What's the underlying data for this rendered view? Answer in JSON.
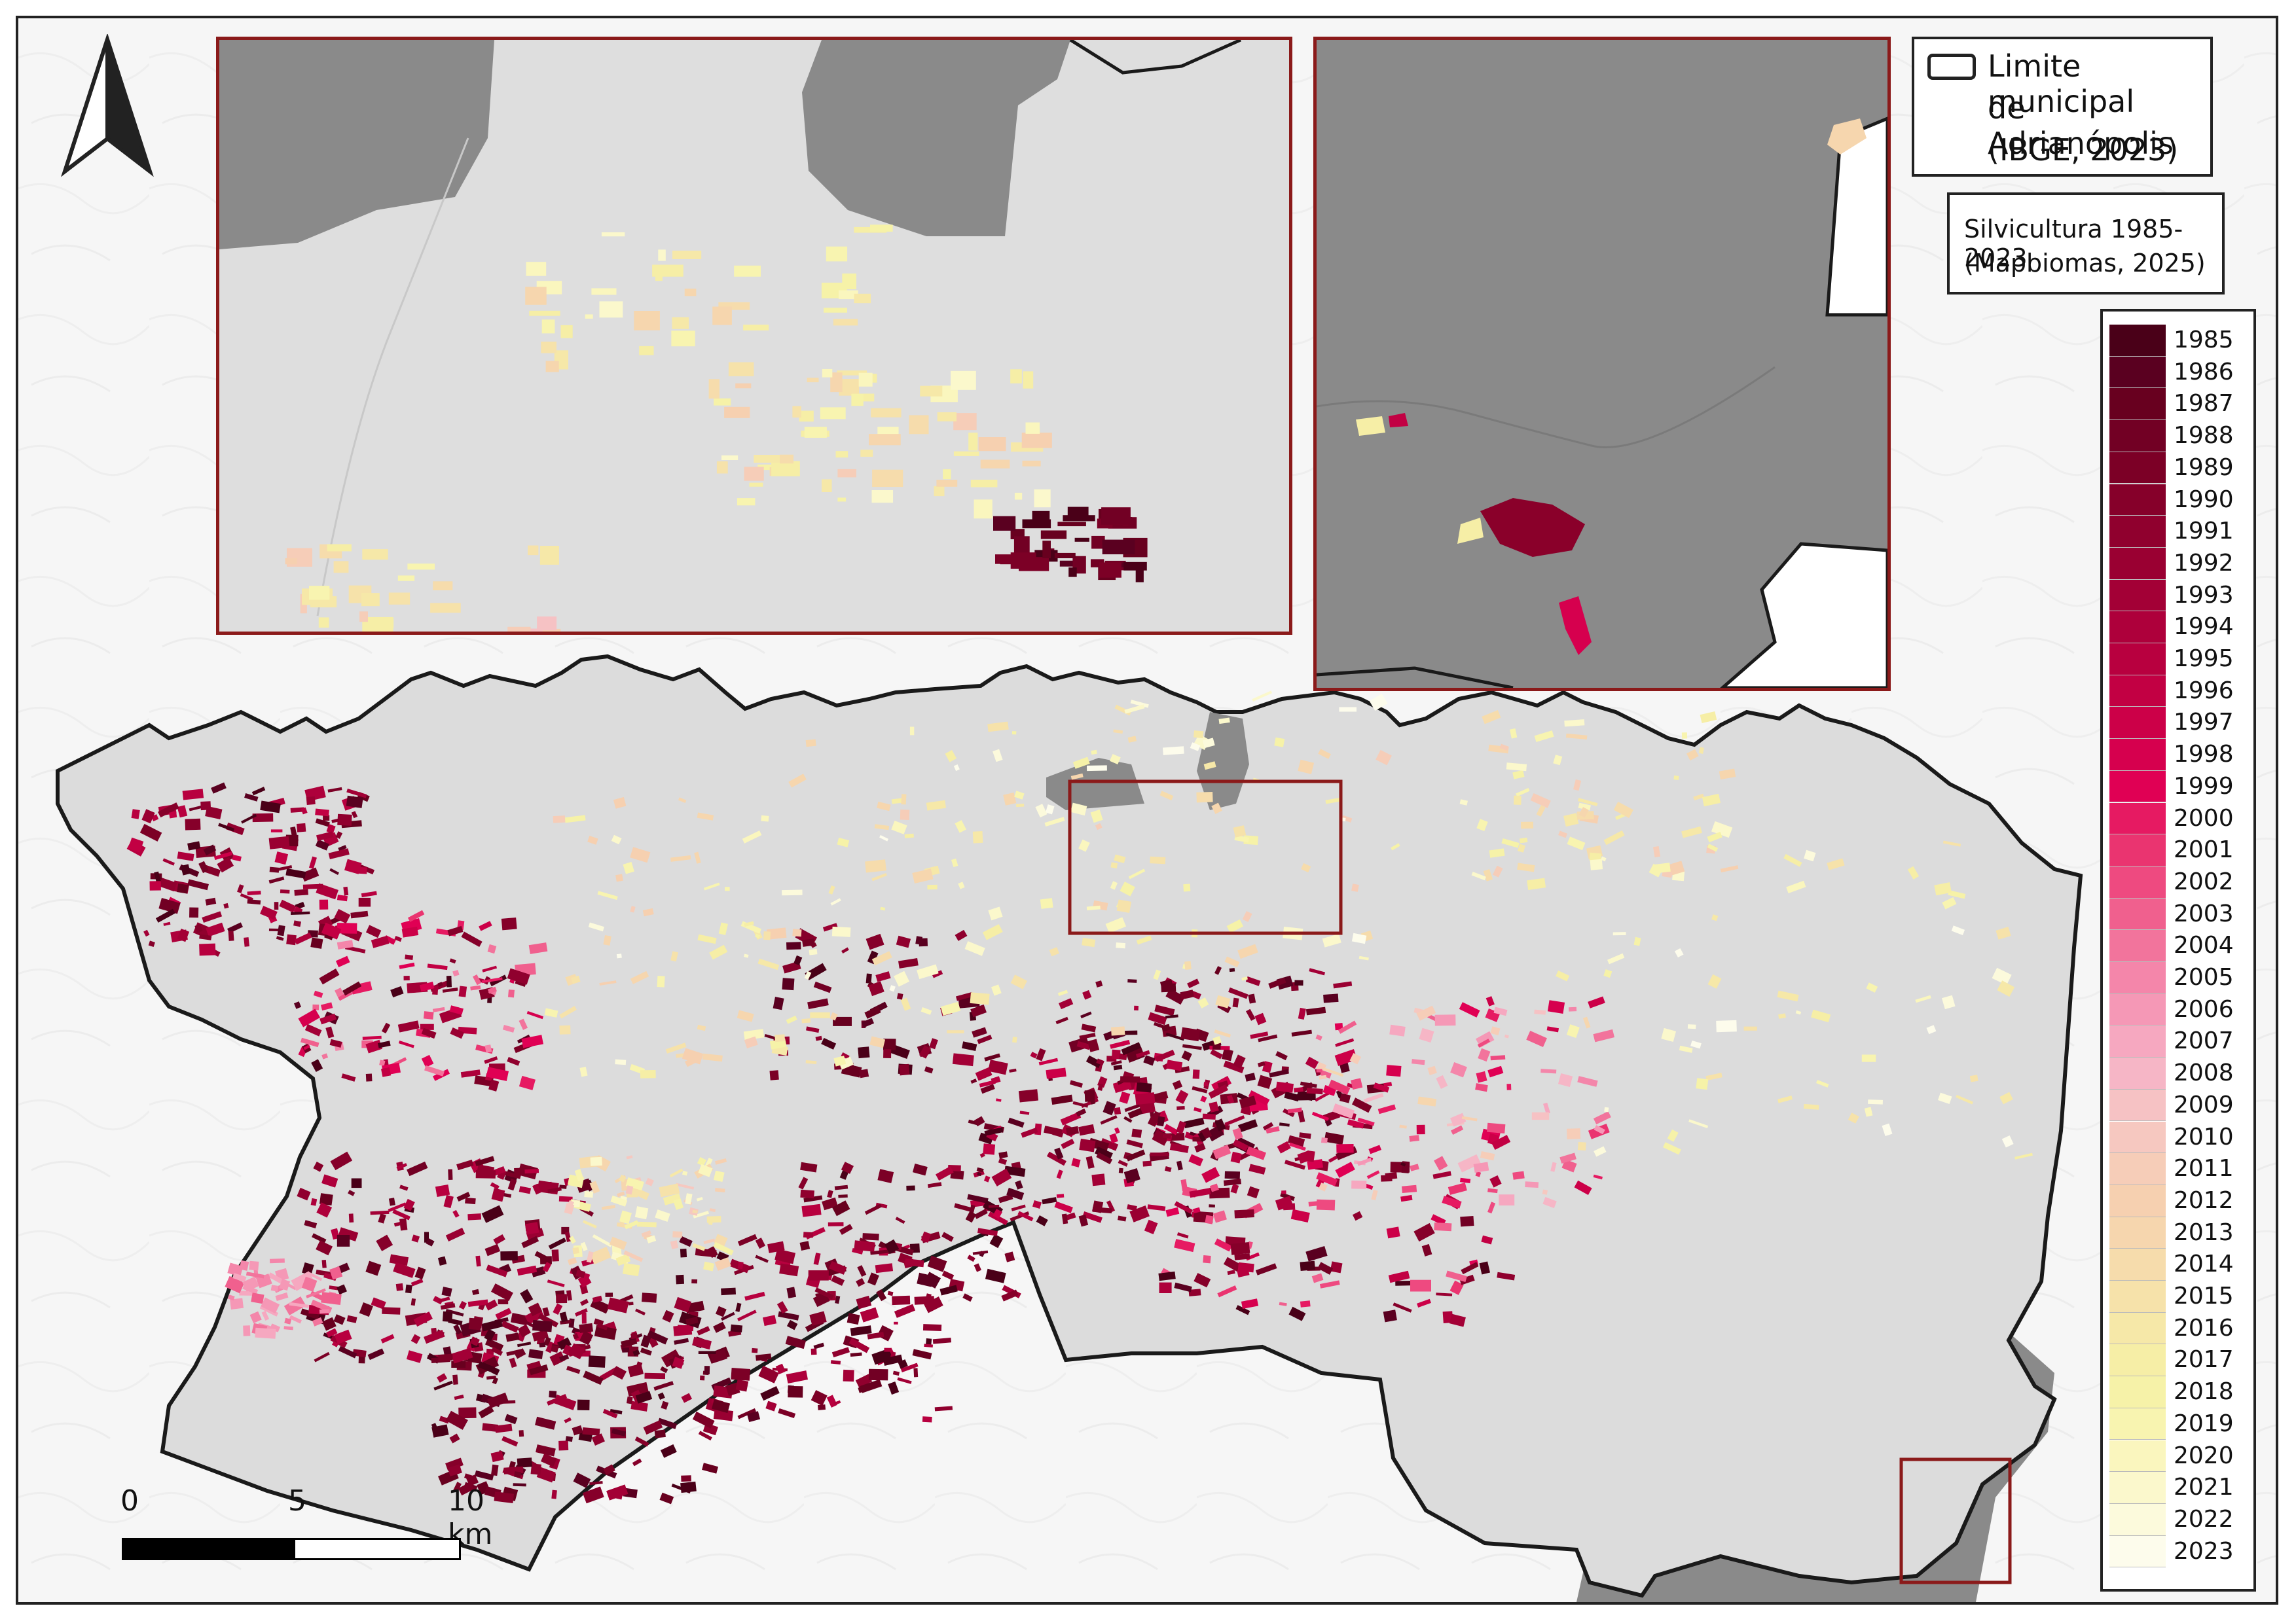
{
  "legend": {
    "boundary_label": "Limite municipal de Adrianópolis (IBGE, 2023)",
    "boundary_lines": [
      "Limite municipal",
      "de Adrianópolis",
      "(IBGE, 2023)"
    ],
    "silviculture_lines": [
      "Silvicultura 1985-2023",
      "(Mapbiomas, 2025)"
    ],
    "years": [
      "1985",
      "1986",
      "1987",
      "1988",
      "1989",
      "1990",
      "1991",
      "1992",
      "1993",
      "1994",
      "1995",
      "1996",
      "1997",
      "1998",
      "1999",
      "2000",
      "2001",
      "2002",
      "2003",
      "2004",
      "2005",
      "2006",
      "2007",
      "2008",
      "2009",
      "2010",
      "2011",
      "2012",
      "2013",
      "2014",
      "2015",
      "2016",
      "2017",
      "2018",
      "2019",
      "2020",
      "2021",
      "2022",
      "2023"
    ],
    "colors": [
      "#4a0018",
      "#5a0020",
      "#68001f",
      "#720024",
      "#7c0026",
      "#86002a",
      "#90002e",
      "#9a0032",
      "#a30036",
      "#ae003b",
      "#b8003f",
      "#c20043",
      "#cc0048",
      "#d6004e",
      "#e00054",
      "#e61a62",
      "#ea3470",
      "#ee4a80",
      "#f0608e",
      "#f2749c",
      "#f486aa",
      "#f598b6",
      "#f6a8c0",
      "#f6b6c6",
      "#f6c2c4",
      "#f6c8c0",
      "#f6cdb8",
      "#f6d0b0",
      "#f6d6ae",
      "#f6dcac",
      "#f6e2aa",
      "#f6e8a8",
      "#f6eea6",
      "#f6f2a8",
      "#f8f4b0",
      "#faf6be",
      "#fbf8cc",
      "#fcfadc",
      "#fdfcec"
    ]
  },
  "scale_bar": {
    "labels": [
      "0",
      "5",
      "10 km"
    ]
  },
  "north_arrow": {
    "icon": "north-arrow-icon"
  }
}
